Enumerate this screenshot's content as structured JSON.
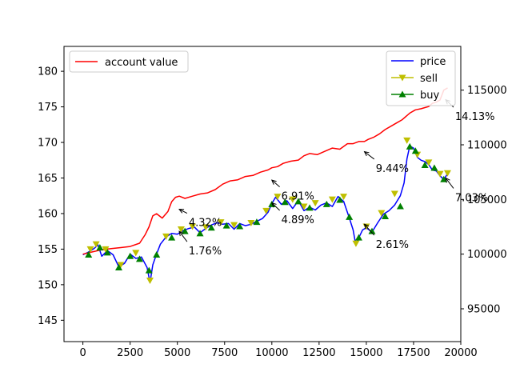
{
  "chart_data": {
    "type": "line",
    "title": "",
    "xlabel": "",
    "ylabel": "",
    "ylabel_right": "",
    "xlim": [
      -1000,
      20000
    ],
    "ylim": [
      142,
      183.5
    ],
    "ylim_right": [
      92000,
      119000
    ],
    "grid": false,
    "x_ticks": [
      0,
      2500,
      5000,
      7500,
      10000,
      12500,
      15000,
      17500,
      20000
    ],
    "x_tick_labels": [
      "0",
      "2500",
      "5000",
      "7500",
      "10000",
      "12500",
      "15000",
      "17500",
      "20000"
    ],
    "y_ticks": [
      145,
      150,
      155,
      160,
      165,
      170,
      175,
      180
    ],
    "y_tick_labels": [
      "145",
      "150",
      "155",
      "160",
      "165",
      "170",
      "175",
      "180"
    ],
    "y_right_ticks": [
      95000,
      100000,
      105000,
      110000,
      115000
    ],
    "y_right_tick_labels": [
      "95000",
      "100000",
      "105000",
      "110000",
      "115000"
    ],
    "legend_left": {
      "placement": "upper left",
      "entries": [
        {
          "label": "account value",
          "color": "#ff0000"
        }
      ]
    },
    "legend_right": {
      "placement": "upper right",
      "entries": [
        {
          "label": "price",
          "color": "#0000ff",
          "marker": "none"
        },
        {
          "label": "sell",
          "color": "#bfbf00",
          "marker": "triangle-down"
        },
        {
          "label": "buy",
          "color": "#008000",
          "marker": "triangle-up"
        }
      ]
    },
    "series": [
      {
        "name": "price",
        "axis": "left",
        "color": "#0000ff",
        "x": [
          0,
          300,
          600,
          800,
          1000,
          1300,
          1600,
          1900,
          2200,
          2500,
          2800,
          3100,
          3400,
          3550,
          3700,
          3900,
          4100,
          4400,
          4700,
          5000,
          5300,
          5600,
          5900,
          6200,
          6500,
          6800,
          7100,
          7400,
          7700,
          8000,
          8300,
          8600,
          8900,
          9200,
          9500,
          9800,
          10000,
          10200,
          10500,
          10800,
          11100,
          11400,
          11700,
          12000,
          12300,
          12600,
          12900,
          13200,
          13500,
          13800,
          14100,
          14300,
          14450,
          14600,
          14800,
          15000,
          15300,
          15600,
          15900,
          16200,
          16500,
          16800,
          17000,
          17150,
          17300,
          17500,
          17700,
          17900,
          18100,
          18300,
          18500,
          18700,
          18900,
          19100,
          19300
        ],
        "values": [
          154.2,
          154.6,
          155.1,
          155.6,
          154.0,
          154.8,
          154.2,
          152.5,
          153.0,
          154.3,
          153.7,
          153.9,
          152.4,
          150.3,
          152.8,
          154.3,
          155.7,
          156.7,
          157.2,
          157.1,
          157.6,
          157.9,
          158.1,
          157.3,
          157.9,
          158.4,
          158.7,
          158.5,
          158.6,
          157.8,
          158.6,
          158.3,
          158.5,
          158.9,
          159.3,
          160.2,
          161.4,
          162.3,
          161.3,
          161.8,
          160.7,
          161.8,
          160.4,
          160.9,
          160.5,
          161.2,
          161.5,
          161.0,
          162.4,
          161.7,
          159.4,
          157.7,
          155.5,
          156.6,
          157.7,
          158.0,
          157.4,
          158.7,
          159.9,
          160.4,
          161.2,
          162.5,
          164.3,
          167.7,
          169.5,
          169.2,
          167.9,
          167.5,
          167.3,
          166.9,
          166.1,
          166.0,
          165.3,
          164.8,
          165.6
        ]
      },
      {
        "name": "account value",
        "axis": "right",
        "color": "#ff0000",
        "x": [
          0,
          500,
          1000,
          1500,
          2000,
          2500,
          3000,
          3300,
          3500,
          3700,
          3900,
          4200,
          4500,
          4700,
          4900,
          5100,
          5400,
          5800,
          6200,
          6600,
          7000,
          7400,
          7800,
          8200,
          8600,
          9000,
          9400,
          9800,
          10000,
          10300,
          10600,
          11000,
          11400,
          11700,
          12000,
          12400,
          12800,
          13200,
          13600,
          14000,
          14300,
          14600,
          14900,
          15100,
          15400,
          15700,
          16000,
          16300,
          16600,
          16900,
          17100,
          17300,
          17600,
          17900,
          18100,
          18300,
          18500,
          18700,
          18900,
          19100,
          19300
        ],
        "values": [
          100000,
          100200,
          100400,
          100500,
          100600,
          100700,
          101000,
          101800,
          102500,
          103500,
          103700,
          103300,
          103900,
          104800,
          105200,
          105300,
          105100,
          105300,
          105500,
          105600,
          105900,
          106400,
          106700,
          106800,
          107100,
          107200,
          107500,
          107700,
          107900,
          108000,
          108300,
          108500,
          108600,
          109000,
          109200,
          109100,
          109400,
          109700,
          109600,
          110100,
          110100,
          110300,
          110300,
          110500,
          110700,
          111000,
          111400,
          111700,
          112000,
          112300,
          112600,
          112900,
          113200,
          113300,
          113400,
          113500,
          113800,
          113900,
          114100,
          115000,
          115200
        ]
      }
    ],
    "sell_points": {
      "name": "sell",
      "color": "#bfbf00",
      "x": [
        400,
        700,
        1200,
        2000,
        2800,
        3550,
        4400,
        5200,
        5800,
        6500,
        7300,
        8000,
        8900,
        9700,
        10300,
        11100,
        11700,
        12300,
        13200,
        13800,
        14450,
        15000,
        15800,
        16500,
        17150,
        17700,
        18300,
        18900,
        19300
      ],
      "values": [
        155.0,
        155.7,
        155.0,
        152.8,
        154.5,
        150.6,
        156.8,
        157.8,
        158.2,
        158.1,
        158.8,
        158.4,
        158.7,
        160.4,
        162.4,
        162.0,
        161.0,
        161.5,
        162.0,
        162.4,
        155.8,
        158.2,
        160.1,
        162.8,
        170.3,
        168.3,
        167.2,
        165.6,
        165.7
      ]
    },
    "buy_points": {
      "name": "buy",
      "color": "#008000",
      "x": [
        300,
        900,
        1300,
        1900,
        2500,
        3000,
        3500,
        3900,
        4700,
        5400,
        6200,
        6800,
        7600,
        8300,
        9200,
        10000,
        10700,
        11400,
        12000,
        12900,
        13600,
        14100,
        14600,
        15300,
        16000,
        16800,
        17300,
        17600,
        18100,
        18600,
        19100
      ],
      "values": [
        154.2,
        155.2,
        154.5,
        152.4,
        154.0,
        153.6,
        152.0,
        154.2,
        156.6,
        157.5,
        157.2,
        158.0,
        158.3,
        158.2,
        158.8,
        161.3,
        161.6,
        161.7,
        160.8,
        161.3,
        161.9,
        159.5,
        156.6,
        157.5,
        159.6,
        161.0,
        169.4,
        168.8,
        166.8,
        166.4,
        164.8
      ]
    },
    "annotations": [
      {
        "text": "4.32%",
        "axis": "left",
        "point": [
          5100,
          160.6
        ],
        "label_at": [
          5600,
          158.7
        ]
      },
      {
        "text": "1.76%",
        "axis": "left",
        "point": [
          5100,
          157.5
        ],
        "label_at": [
          5600,
          154.7
        ]
      },
      {
        "text": "6.91%",
        "axis": "left",
        "point": [
          10000,
          164.7
        ],
        "label_at": [
          10500,
          162.4
        ]
      },
      {
        "text": "4.89%",
        "axis": "left",
        "point": [
          10000,
          161.5
        ],
        "label_at": [
          10500,
          159.1
        ]
      },
      {
        "text": "9.44%",
        "axis": "left",
        "point": [
          14900,
          168.7
        ],
        "label_at": [
          15500,
          166.3
        ]
      },
      {
        "text": "2.61%",
        "axis": "left",
        "point": [
          14900,
          158.5
        ],
        "label_at": [
          15500,
          155.6
        ]
      },
      {
        "text": "14.13%",
        "axis": "left",
        "point": [
          19200,
          176.0
        ],
        "label_at": [
          19700,
          173.6
        ]
      },
      {
        "text": "7.03%",
        "axis": "left",
        "point": [
          19200,
          165.0
        ],
        "label_at": [
          19700,
          162.2
        ]
      }
    ]
  }
}
